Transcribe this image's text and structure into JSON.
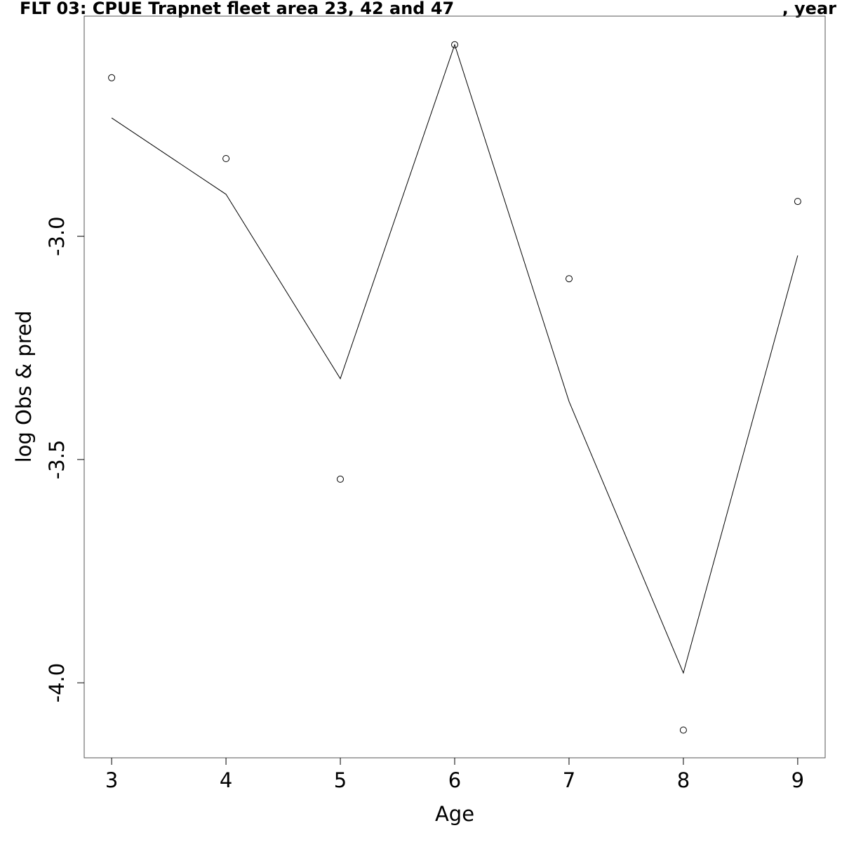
{
  "chart_data": {
    "type": "line",
    "title": "FLT 03: CPUE Trapnet fleet area 23, 42 and 47",
    "title_suffix": ", year",
    "xlabel": "Age",
    "ylabel": "log Obs & pred",
    "xlim": [
      2.76,
      9.24
    ],
    "ylim": [
      -4.168,
      -2.507
    ],
    "x_ticks": [
      3,
      4,
      5,
      6,
      7,
      8,
      9
    ],
    "y_ticks": [
      -3.0,
      -3.5,
      -4.0
    ],
    "y_tick_labels": [
      "-3.0",
      "-3.5",
      "-4.0"
    ],
    "grid": false,
    "legend": "none",
    "series": [
      {
        "kind": "points",
        "marker": "open-circle",
        "x": [
          3,
          4,
          5,
          6,
          7,
          8,
          9
        ],
        "y": [
          -2.645,
          -2.826,
          -3.544,
          -2.571,
          -3.095,
          -4.106,
          -2.922
        ]
      },
      {
        "kind": "line",
        "x": [
          3,
          4,
          5,
          6,
          7,
          8,
          9
        ],
        "y": [
          -2.735,
          -2.906,
          -3.319,
          -2.571,
          -3.37,
          -3.978,
          -3.043
        ]
      }
    ]
  }
}
